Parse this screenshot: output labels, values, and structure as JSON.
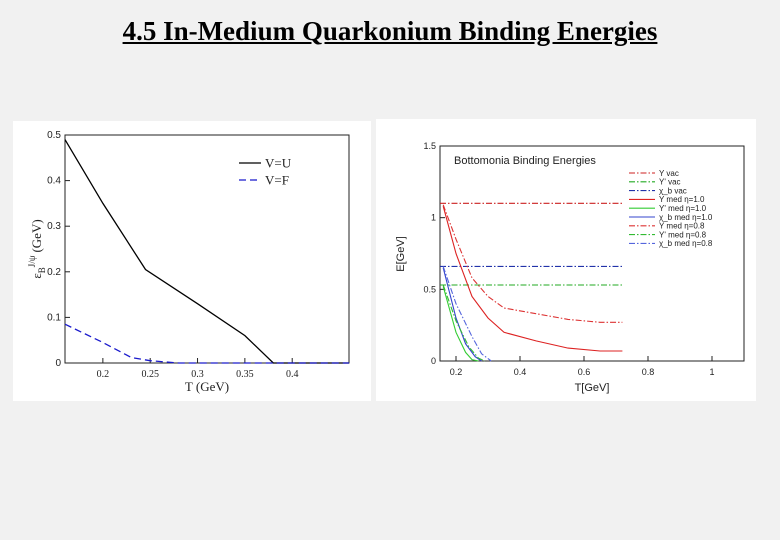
{
  "slide": {
    "title": "4.5 In-Medium Quarkonium Binding Energies"
  },
  "chart_data": [
    {
      "type": "line",
      "title": "",
      "xlabel": "T (GeV)",
      "ylabel_main": "ε",
      "ylabel_sub": "B",
      "ylabel_sup": "J/ψ",
      "ylabel_unit": "(GeV)",
      "xlim": [
        0.16,
        0.46
      ],
      "ylim": [
        0,
        0.5
      ],
      "xticks": [
        0.2,
        0.25,
        0.3,
        0.35,
        0.4
      ],
      "yticks": [
        0,
        0.1,
        0.2,
        0.3,
        0.4,
        0.5
      ],
      "xtick_labels": [
        "0.2",
        "0.25",
        "0.3",
        "0.35",
        "0.4"
      ],
      "ytick_labels": [
        "0",
        "0.1",
        "0.2",
        "0.3",
        "0.4",
        "0.5"
      ],
      "legend_position": "top-right",
      "series": [
        {
          "name": "V=U",
          "color": "#000000",
          "dash": "solid",
          "x": [
            0.16,
            0.2,
            0.245,
            0.3,
            0.35,
            0.38,
            0.46
          ],
          "y": [
            0.49,
            0.35,
            0.205,
            0.13,
            0.06,
            0.0,
            0.0
          ]
        },
        {
          "name": "V=F",
          "color": "#1a1acc",
          "dash": "dashed",
          "x": [
            0.16,
            0.2,
            0.23,
            0.25,
            0.28,
            0.46
          ],
          "y": [
            0.085,
            0.045,
            0.012,
            0.005,
            0.0,
            0.0
          ]
        }
      ]
    },
    {
      "type": "line",
      "title": "Bottomonia Binding Energies",
      "xlabel": "T[GeV]",
      "ylabel": "E[GeV]",
      "xlim": [
        0.15,
        1.1
      ],
      "ylim": [
        0,
        1.5
      ],
      "xticks": [
        0.2,
        0.4,
        0.6,
        0.8,
        1.0
      ],
      "yticks": [
        0,
        0.5,
        1.0,
        1.5
      ],
      "xtick_labels": [
        "0.2",
        "0.4",
        "0.6",
        "0.8",
        "1"
      ],
      "ytick_labels": [
        "0",
        "0.5",
        "1",
        "1.5"
      ],
      "legend_position": "top-right",
      "series": [
        {
          "name": "Υ vac",
          "color": "#cc2222",
          "dash": "dashdot",
          "x": [
            0.15,
            0.72
          ],
          "y": [
            1.1,
            1.1
          ]
        },
        {
          "name": "Υ' vac",
          "color": "#22aa22",
          "dash": "dashdot",
          "x": [
            0.15,
            0.72
          ],
          "y": [
            0.53,
            0.53
          ]
        },
        {
          "name": "χ_b vac",
          "color": "#2233aa",
          "dash": "dashdot",
          "x": [
            0.15,
            0.72
          ],
          "y": [
            0.66,
            0.66
          ]
        },
        {
          "name": "Υ med η=1.0",
          "color": "#dd2222",
          "dash": "solid",
          "x": [
            0.16,
            0.2,
            0.25,
            0.3,
            0.35,
            0.45,
            0.55,
            0.65,
            0.72
          ],
          "y": [
            1.08,
            0.75,
            0.45,
            0.3,
            0.2,
            0.14,
            0.09,
            0.07,
            0.07
          ]
        },
        {
          "name": "Υ' med η=1.0",
          "color": "#33cc33",
          "dash": "solid",
          "x": [
            0.16,
            0.2,
            0.23,
            0.25,
            0.27
          ],
          "y": [
            0.52,
            0.2,
            0.06,
            0.01,
            0.0
          ]
        },
        {
          "name": "χ_b med η=1.0",
          "color": "#3344cc",
          "dash": "solid",
          "x": [
            0.16,
            0.2,
            0.23,
            0.26,
            0.28
          ],
          "y": [
            0.65,
            0.3,
            0.12,
            0.03,
            0.0
          ]
        },
        {
          "name": "Υ med η=0.8",
          "color": "#dd3333",
          "dash": "dashdot",
          "x": [
            0.16,
            0.2,
            0.25,
            0.3,
            0.35,
            0.45,
            0.55,
            0.65,
            0.72
          ],
          "y": [
            1.09,
            0.85,
            0.58,
            0.45,
            0.37,
            0.33,
            0.29,
            0.27,
            0.27
          ]
        },
        {
          "name": "Υ' med η=0.8",
          "color": "#33bb33",
          "dash": "dashdot",
          "x": [
            0.16,
            0.2,
            0.24,
            0.27,
            0.29
          ],
          "y": [
            0.53,
            0.28,
            0.1,
            0.02,
            0.0
          ]
        },
        {
          "name": "χ_b med η=0.8",
          "color": "#5566dd",
          "dash": "dashdot",
          "x": [
            0.16,
            0.2,
            0.25,
            0.28,
            0.31
          ],
          "y": [
            0.66,
            0.4,
            0.17,
            0.05,
            0.0
          ]
        }
      ]
    }
  ]
}
